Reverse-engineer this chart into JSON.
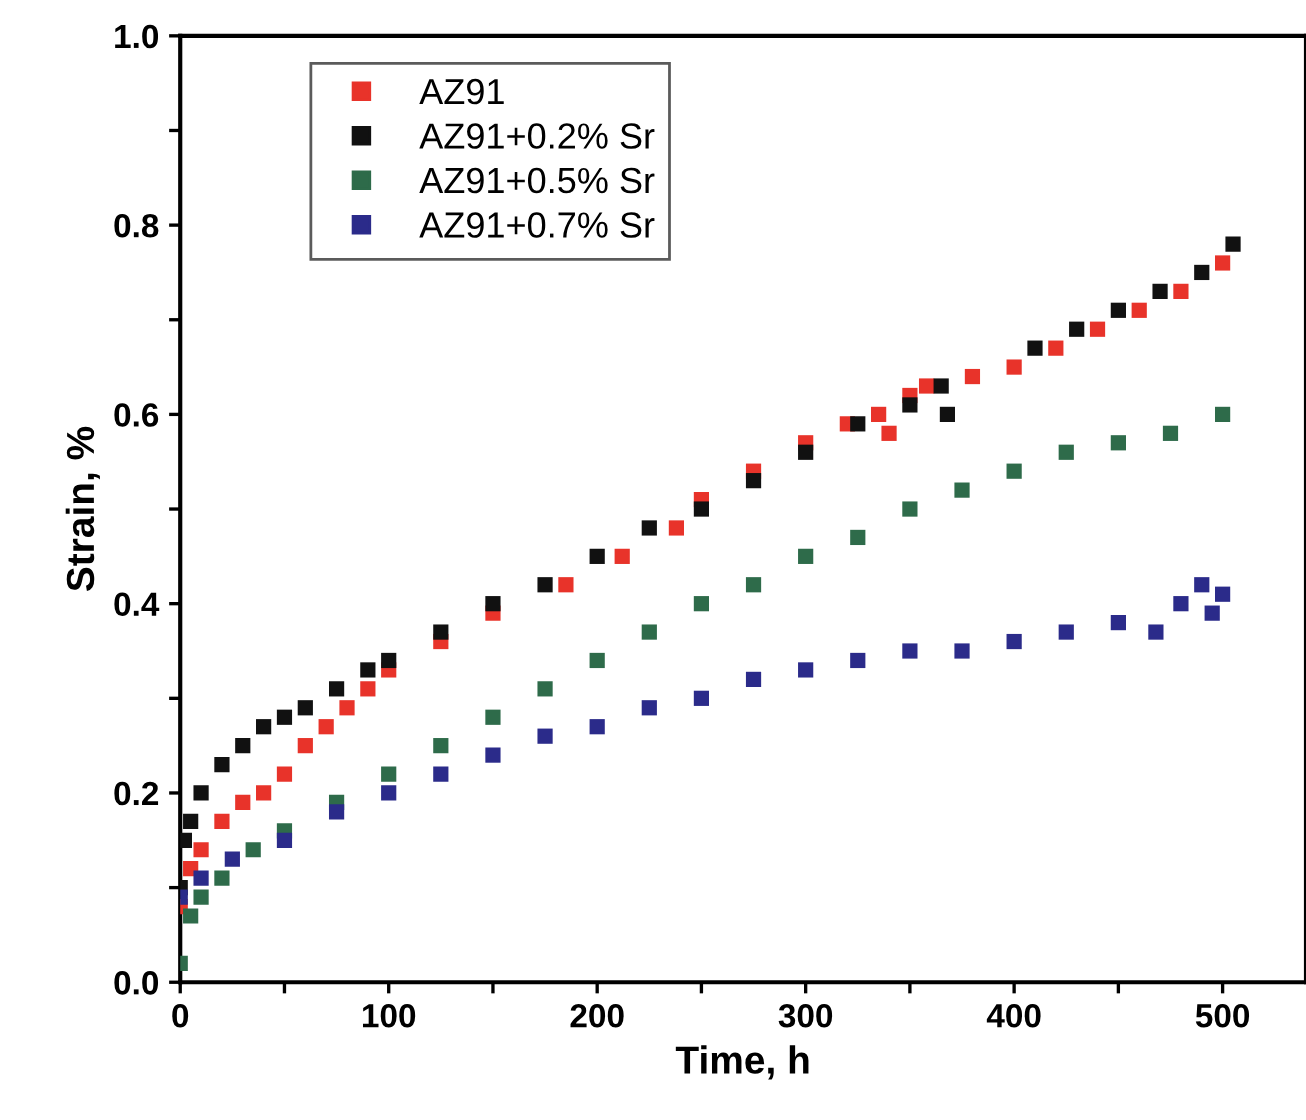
{
  "chart_data": {
    "type": "scatter",
    "xlabel": "Time, h",
    "ylabel": "Strain, %",
    "marker": "square",
    "legend": "top left",
    "grid": false,
    "xlim": [
      0,
      540
    ],
    "xticks": [
      0,
      {
        "value": 50,
        "label": null
      },
      100,
      {
        "value": 150,
        "label": null
      },
      200,
      {
        "value": 250,
        "label": null
      },
      300,
      {
        "value": 350,
        "label": null
      },
      400,
      {
        "value": 450,
        "label": null
      },
      500
    ],
    "ylim": [
      0,
      1.0
    ],
    "yticks": [
      "0.0",
      {
        "value": 0.1,
        "label": null
      },
      {
        "value": 0.2,
        "label": "0.2"
      },
      {
        "value": 0.3,
        "label": null
      },
      {
        "value": 0.4,
        "label": "0.4"
      },
      {
        "value": 0.5,
        "label": null
      },
      {
        "value": 0.6,
        "label": "0.6"
      },
      {
        "value": 0.7,
        "label": null
      },
      {
        "value": 0.8,
        "label": "0.8"
      },
      {
        "value": 0.9,
        "label": null
      },
      {
        "value": 1.0,
        "label": "1.0"
      }
    ],
    "series": [
      {
        "name": "AZ91",
        "color": "#e8332a",
        "x": [
          0,
          5,
          10,
          20,
          30,
          40,
          50,
          60,
          70,
          80,
          90,
          100,
          125,
          150,
          185,
          212,
          238,
          250,
          275,
          300,
          320,
          335,
          340,
          350,
          358,
          380,
          400,
          420,
          440,
          460,
          480,
          500
        ],
        "values": [
          0.08,
          0.12,
          0.14,
          0.17,
          0.19,
          0.2,
          0.22,
          0.25,
          0.27,
          0.29,
          0.31,
          0.33,
          0.36,
          0.39,
          0.42,
          0.45,
          0.48,
          0.51,
          0.54,
          0.57,
          0.59,
          0.6,
          0.58,
          0.62,
          0.63,
          0.64,
          0.65,
          0.67,
          0.69,
          0.71,
          0.73,
          0.76
        ]
      },
      {
        "name": "AZ91+0.2% Sr",
        "color": "#111111",
        "x": [
          0,
          2,
          5,
          10,
          20,
          30,
          40,
          50,
          60,
          75,
          90,
          100,
          125,
          150,
          175,
          200,
          225,
          250,
          275,
          300,
          325,
          350,
          365,
          368,
          410,
          430,
          450,
          470,
          490,
          505
        ],
        "values": [
          0.1,
          0.15,
          0.17,
          0.2,
          0.23,
          0.25,
          0.27,
          0.28,
          0.29,
          0.31,
          0.33,
          0.34,
          0.37,
          0.4,
          0.42,
          0.45,
          0.48,
          0.5,
          0.53,
          0.56,
          0.59,
          0.61,
          0.63,
          0.6,
          0.67,
          0.69,
          0.71,
          0.73,
          0.75,
          0.78
        ]
      },
      {
        "name": "AZ91+0.5% Sr",
        "color": "#2e6b4a",
        "x": [
          0,
          5,
          10,
          20,
          35,
          50,
          75,
          100,
          125,
          150,
          175,
          200,
          225,
          250,
          275,
          300,
          325,
          350,
          375,
          400,
          425,
          450,
          475,
          500
        ],
        "values": [
          0.02,
          0.07,
          0.09,
          0.11,
          0.14,
          0.16,
          0.19,
          0.22,
          0.25,
          0.28,
          0.31,
          0.34,
          0.37,
          0.4,
          0.42,
          0.45,
          0.47,
          0.5,
          0.52,
          0.54,
          0.56,
          0.57,
          0.58,
          0.6
        ]
      },
      {
        "name": "AZ91+0.7% Sr",
        "color": "#2b2b8a",
        "x": [
          0,
          10,
          25,
          50,
          75,
          100,
          125,
          150,
          175,
          200,
          225,
          250,
          275,
          300,
          325,
          350,
          375,
          400,
          425,
          450,
          468,
          480,
          490,
          495,
          500
        ],
        "values": [
          0.09,
          0.11,
          0.13,
          0.15,
          0.18,
          0.2,
          0.22,
          0.24,
          0.26,
          0.27,
          0.29,
          0.3,
          0.32,
          0.33,
          0.34,
          0.35,
          0.35,
          0.36,
          0.37,
          0.38,
          0.37,
          0.4,
          0.42,
          0.39,
          0.41
        ]
      }
    ]
  }
}
